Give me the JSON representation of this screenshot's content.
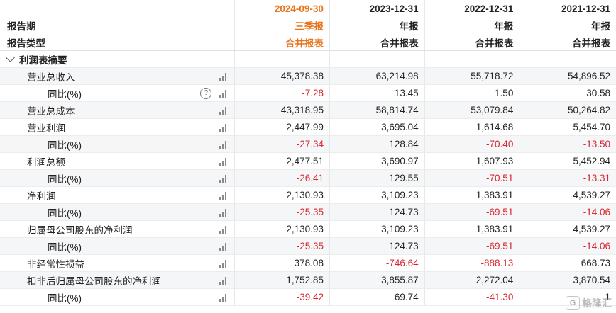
{
  "header": {
    "periods": [
      "2024-09-30",
      "2023-12-31",
      "2022-12-31",
      "2021-12-31"
    ],
    "report_period_label": "报告期",
    "report_type_label": "报告类型",
    "period_kinds": [
      "三季报",
      "年报",
      "年报",
      "年报"
    ],
    "report_types": [
      "合并报表",
      "合并报表",
      "合并报表",
      "合并报表"
    ]
  },
  "section": {
    "title": "利润表摘要"
  },
  "rows": [
    {
      "label": "营业总收入",
      "level": 1,
      "values": [
        "45,378.38",
        "63,214.98",
        "55,718.72",
        "54,896.52"
      ]
    },
    {
      "label": "同比(%)",
      "level": 2,
      "help": true,
      "values": [
        "-7.28",
        "13.45",
        "1.50",
        "30.58"
      ]
    },
    {
      "label": "营业总成本",
      "level": 1,
      "values": [
        "43,318.95",
        "58,814.74",
        "53,079.84",
        "50,264.82"
      ]
    },
    {
      "label": "营业利润",
      "level": 1,
      "values": [
        "2,447.99",
        "3,695.04",
        "1,614.68",
        "5,454.70"
      ]
    },
    {
      "label": "同比(%)",
      "level": 2,
      "values": [
        "-27.34",
        "128.84",
        "-70.40",
        "-13.50"
      ]
    },
    {
      "label": "利润总额",
      "level": 1,
      "values": [
        "2,477.51",
        "3,690.97",
        "1,607.93",
        "5,452.94"
      ]
    },
    {
      "label": "同比(%)",
      "level": 2,
      "values": [
        "-26.41",
        "129.55",
        "-70.51",
        "-13.31"
      ]
    },
    {
      "label": "净利润",
      "level": 1,
      "values": [
        "2,130.93",
        "3,109.23",
        "1,383.91",
        "4,539.27"
      ]
    },
    {
      "label": "同比(%)",
      "level": 2,
      "values": [
        "-25.35",
        "124.73",
        "-69.51",
        "-14.06"
      ]
    },
    {
      "label": "归属母公司股东的净利润",
      "level": 1,
      "values": [
        "2,130.93",
        "3,109.23",
        "1,383.91",
        "4,539.27"
      ]
    },
    {
      "label": "同比(%)",
      "level": 2,
      "values": [
        "-25.35",
        "124.73",
        "-69.51",
        "-14.06"
      ]
    },
    {
      "label": "非经常性损益",
      "level": 1,
      "values": [
        "378.08",
        "-746.64",
        "-888.13",
        "668.73"
      ]
    },
    {
      "label": "扣非后归属母公司股东的净利润",
      "level": 1,
      "values": [
        "1,752.85",
        "3,855.87",
        "2,272.04",
        "3,870.54"
      ]
    },
    {
      "label": "同比(%)",
      "level": 2,
      "values": [
        "-39.42",
        "69.74",
        "-41.30",
        "1"
      ]
    }
  ],
  "icons": {
    "chart": "bar-chart-icon",
    "help": "help-circle-icon",
    "expand": "chevron-down-icon"
  },
  "colors": {
    "current_period": "#e8731b",
    "negative": "#d9262f",
    "alt_row": "#f5f6f8"
  },
  "watermark": {
    "text": "格隆汇"
  }
}
